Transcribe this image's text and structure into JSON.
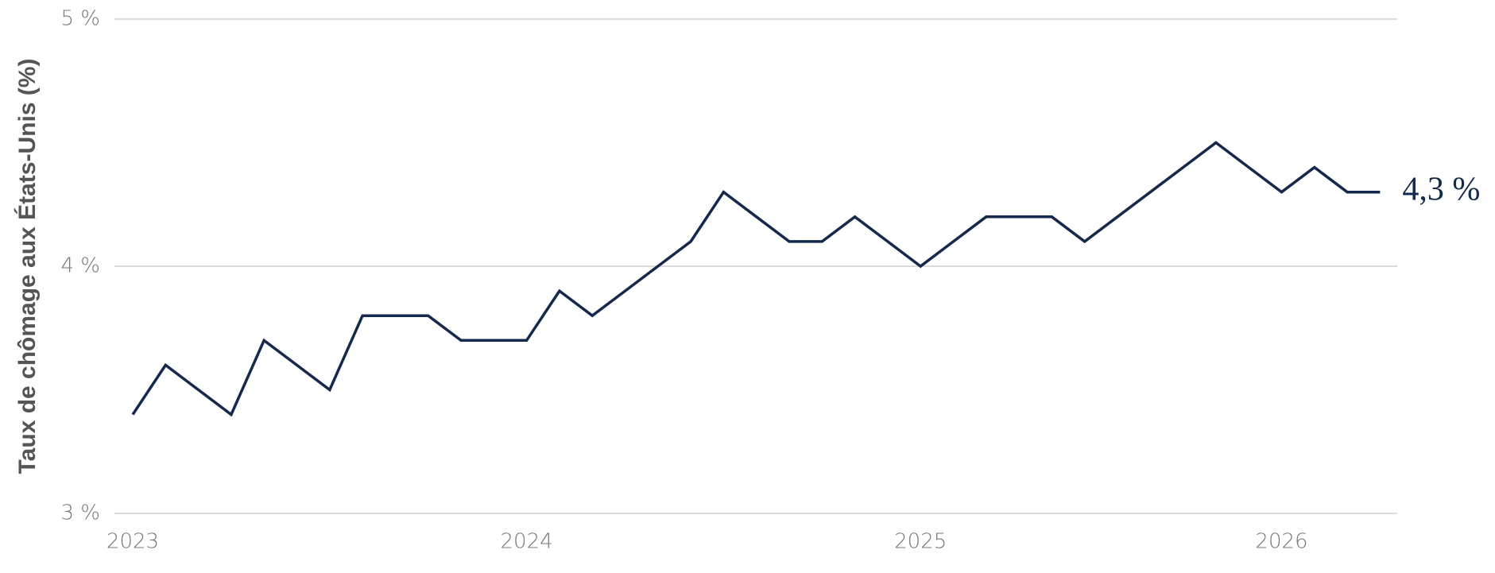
{
  "chart_data": {
    "type": "line",
    "y_label": "Taux de chômage aux États-Unis (%)",
    "categories": [
      "2023",
      null,
      null,
      null,
      null,
      null,
      null,
      null,
      null,
      null,
      null,
      null,
      "2024",
      null,
      null,
      null,
      null,
      null,
      null,
      null,
      null,
      null,
      null,
      null,
      "2025",
      null,
      null,
      null,
      null,
      null,
      null,
      null,
      null,
      null,
      null,
      "2026",
      null,
      null,
      null
    ],
    "values": [
      3.4,
      3.6,
      3.5,
      3.4,
      3.7,
      3.6,
      3.5,
      3.8,
      3.8,
      3.8,
      3.7,
      3.7,
      3.7,
      3.9,
      3.8,
      3.9,
      4.0,
      4.1,
      4.3,
      4.2,
      4.1,
      4.1,
      4.2,
      4.1,
      4.0,
      4.1,
      4.2,
      4.2,
      4.2,
      4.1,
      4.2,
      4.3,
      4.4,
      4.5,
      4.4,
      4.3,
      4.4,
      4.3,
      4.3
    ],
    "end_label": "4,3 %",
    "color": "#14294b",
    "ylim": [
      3,
      5
    ],
    "yticks": [
      {
        "value": 3,
        "label": "3 %"
      },
      {
        "value": 4,
        "label": "4 %"
      },
      {
        "value": 5,
        "label": "5 %"
      }
    ],
    "grid": true
  }
}
